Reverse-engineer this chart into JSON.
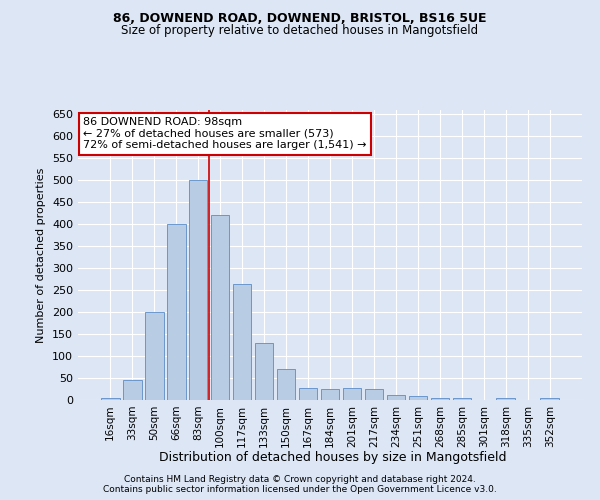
{
  "title1": "86, DOWNEND ROAD, DOWNEND, BRISTOL, BS16 5UE",
  "title2": "Size of property relative to detached houses in Mangotsfield",
  "xlabel": "Distribution of detached houses by size in Mangotsfield",
  "ylabel": "Number of detached properties",
  "categories": [
    "16sqm",
    "33sqm",
    "50sqm",
    "66sqm",
    "83sqm",
    "100sqm",
    "117sqm",
    "133sqm",
    "150sqm",
    "167sqm",
    "184sqm",
    "201sqm",
    "217sqm",
    "234sqm",
    "251sqm",
    "268sqm",
    "285sqm",
    "301sqm",
    "318sqm",
    "335sqm",
    "352sqm"
  ],
  "values": [
    5,
    45,
    200,
    400,
    500,
    420,
    265,
    130,
    70,
    28,
    25,
    27,
    25,
    12,
    10,
    5,
    5,
    0,
    5,
    0,
    5
  ],
  "bar_color": "#b8cce4",
  "bar_edge_color": "#5b8cc8",
  "annotation_text1": "86 DOWNEND ROAD: 98sqm",
  "annotation_text2": "← 27% of detached houses are smaller (573)",
  "annotation_text3": "72% of semi-detached houses are larger (1,541) →",
  "annotation_box_color": "#ffffff",
  "annotation_box_edge": "#cc0000",
  "vline_color": "#cc0000",
  "ylim": [
    0,
    660
  ],
  "yticks": [
    0,
    50,
    100,
    150,
    200,
    250,
    300,
    350,
    400,
    450,
    500,
    550,
    600,
    650
  ],
  "footer1": "Contains HM Land Registry data © Crown copyright and database right 2024.",
  "footer2": "Contains public sector information licensed under the Open Government Licence v3.0.",
  "bg_color": "#dce6f5",
  "plot_bg_color": "#dce6f5",
  "title_fontsize": 9,
  "subtitle_fontsize": 8.5
}
